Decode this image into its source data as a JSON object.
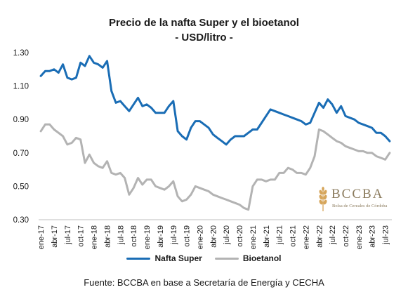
{
  "title": {
    "line1": "Precio de la nafta Super y el bioetanol",
    "line2": "- USD/litro -"
  },
  "source": "Fuente: BCCBA en base a Secretaría de Energía y CECHA",
  "logo": {
    "name": "BCCBA",
    "subtitle": "Bolsa de Cereales de Córdoba",
    "icon": "wheat-icon"
  },
  "colors": {
    "nafta": "#1a6db5",
    "bioetanol": "#b3b3b3",
    "axis": "#bfbfbf",
    "logo": "#d6a55a"
  },
  "chart_data": {
    "type": "line",
    "title": "Precio de la nafta Super y el bioetanol",
    "subtitle": "- USD/litro -",
    "ylim": [
      0.3,
      1.3
    ],
    "yticks": [
      "0.30",
      "0.50",
      "0.70",
      "0.90",
      "1.10",
      "1.30"
    ],
    "ytick_values": [
      0.3,
      0.5,
      0.7,
      0.9,
      1.1,
      1.3
    ],
    "grid": false,
    "legend_position": "bottom",
    "x_tick_labels": [
      "ene-17",
      "abr-17",
      "jul-17",
      "oct-17",
      "ene-18",
      "abr-18",
      "jul-18",
      "oct-18",
      "ene-19",
      "abr-19",
      "jul-19",
      "oct-19",
      "ene-20",
      "abr-20",
      "jul-20",
      "oct-20",
      "ene-21",
      "abr-21",
      "jul-21",
      "oct-21",
      "ene-22",
      "abr-22",
      "jul-22",
      "oct-22",
      "ene-23",
      "abr-23",
      "jul-23"
    ],
    "x": [
      "ene-17",
      "feb-17",
      "mar-17",
      "abr-17",
      "may-17",
      "jun-17",
      "jul-17",
      "ago-17",
      "sep-17",
      "oct-17",
      "nov-17",
      "dic-17",
      "ene-18",
      "feb-18",
      "mar-18",
      "abr-18",
      "may-18",
      "jun-18",
      "jul-18",
      "ago-18",
      "sep-18",
      "oct-18",
      "nov-18",
      "dic-18",
      "ene-19",
      "feb-19",
      "mar-19",
      "abr-19",
      "may-19",
      "jun-19",
      "jul-19",
      "ago-19",
      "sep-19",
      "oct-19",
      "nov-19",
      "dic-19",
      "ene-20",
      "feb-20",
      "mar-20",
      "abr-20",
      "may-20",
      "jun-20",
      "jul-20",
      "ago-20",
      "sep-20",
      "oct-20",
      "nov-20",
      "dic-20",
      "ene-21",
      "feb-21",
      "mar-21",
      "abr-21",
      "may-21",
      "jun-21",
      "jul-21",
      "ago-21",
      "sep-21",
      "oct-21",
      "nov-21",
      "dic-21",
      "ene-22",
      "feb-22",
      "mar-22",
      "abr-22",
      "may-22",
      "jun-22",
      "jul-22",
      "ago-22",
      "sep-22",
      "oct-22",
      "nov-22",
      "dic-22",
      "ene-23",
      "feb-23",
      "mar-23",
      "abr-23",
      "may-23",
      "jun-23",
      "jul-23",
      "ago-23"
    ],
    "series": [
      {
        "name": "Nafta Super",
        "color": "#1a6db5",
        "values": [
          1.16,
          1.19,
          1.19,
          1.2,
          1.18,
          1.23,
          1.15,
          1.14,
          1.15,
          1.24,
          1.22,
          1.28,
          1.24,
          1.23,
          1.21,
          1.25,
          1.07,
          1.0,
          1.01,
          0.98,
          0.95,
          0.99,
          1.03,
          0.98,
          0.99,
          0.97,
          0.94,
          0.94,
          0.94,
          0.98,
          1.01,
          0.83,
          0.8,
          0.78,
          0.85,
          0.89,
          0.89,
          0.87,
          0.85,
          0.81,
          0.79,
          0.77,
          0.75,
          0.78,
          0.8,
          0.8,
          0.8,
          0.82,
          0.84,
          0.84,
          0.88,
          0.92,
          0.96,
          0.95,
          0.94,
          0.93,
          0.92,
          0.91,
          0.9,
          0.89,
          0.87,
          0.88,
          0.94,
          1.0,
          0.97,
          1.02,
          0.99,
          0.94,
          0.98,
          0.92,
          0.91,
          0.9,
          0.88,
          0.87,
          0.86,
          0.85,
          0.82,
          0.82,
          0.8,
          0.77
        ]
      },
      {
        "name": "Bioetanol",
        "color": "#b3b3b3",
        "values": [
          0.83,
          0.87,
          0.87,
          0.84,
          0.82,
          0.8,
          0.75,
          0.76,
          0.79,
          0.78,
          0.64,
          0.69,
          0.64,
          0.62,
          0.61,
          0.65,
          0.58,
          0.57,
          0.58,
          0.55,
          0.45,
          0.49,
          0.55,
          0.51,
          0.54,
          0.54,
          0.5,
          0.49,
          0.48,
          0.5,
          0.53,
          0.44,
          0.41,
          0.42,
          0.45,
          0.5,
          0.49,
          0.48,
          0.47,
          0.45,
          0.44,
          0.43,
          0.42,
          0.41,
          0.4,
          0.39,
          0.37,
          0.36,
          0.5,
          0.54,
          0.54,
          0.53,
          0.54,
          0.54,
          0.58,
          0.58,
          0.61,
          0.6,
          0.58,
          0.58,
          0.57,
          0.61,
          0.68,
          0.84,
          0.83,
          0.81,
          0.79,
          0.77,
          0.76,
          0.74,
          0.73,
          0.72,
          0.71,
          0.71,
          0.7,
          0.7,
          0.68,
          0.67,
          0.66,
          0.7
        ]
      }
    ]
  }
}
